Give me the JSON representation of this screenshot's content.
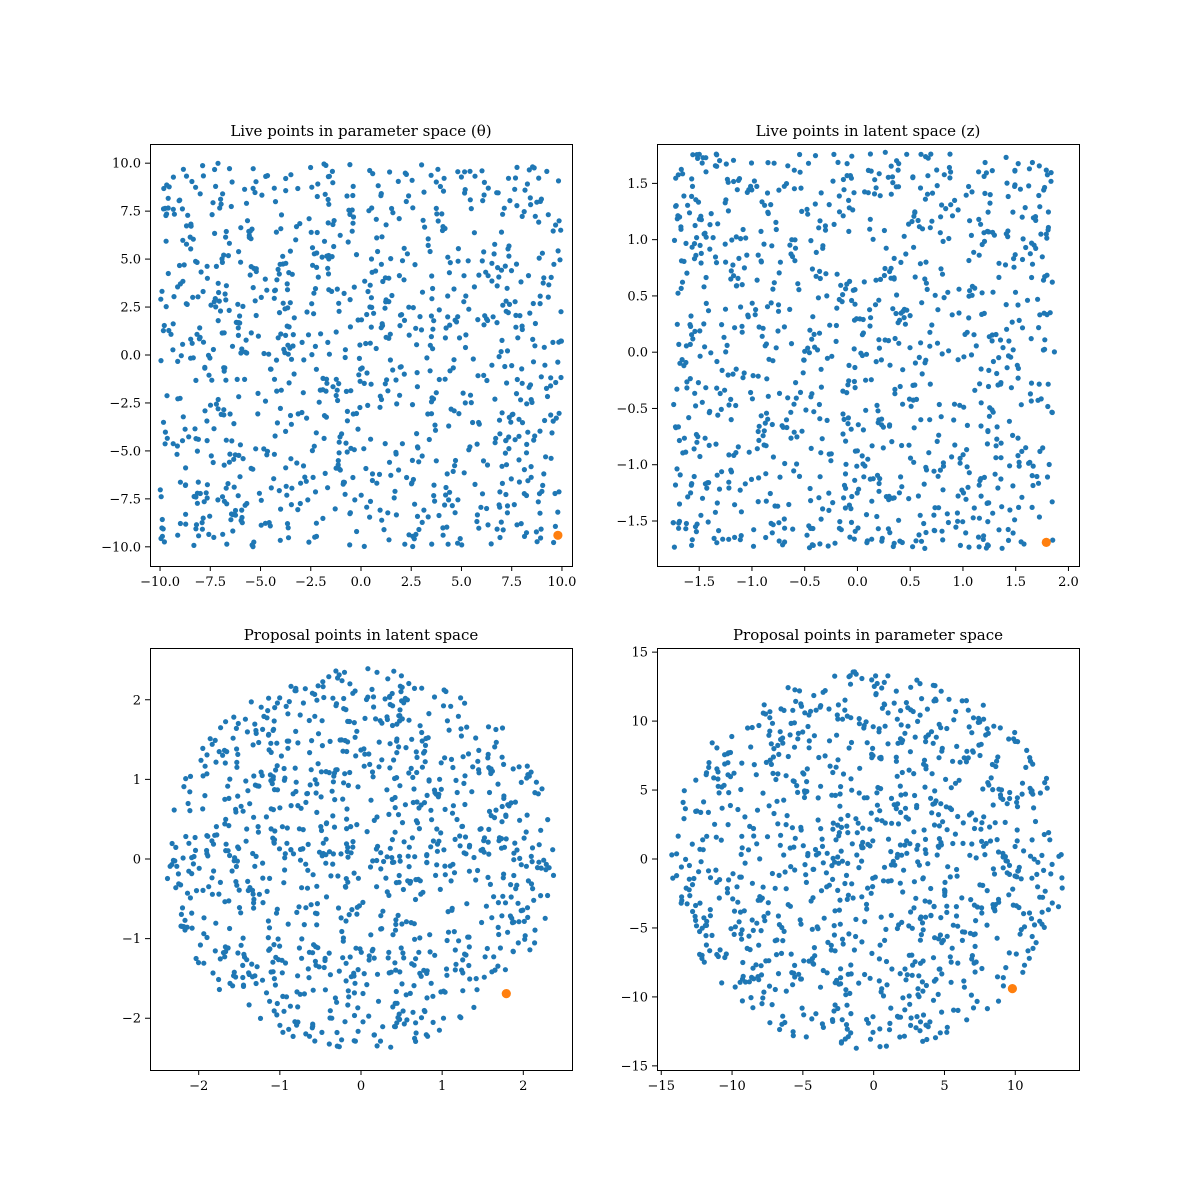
{
  "colors": {
    "points": "#1f77b4",
    "highlight": "#ff7f0e"
  },
  "chart_data": [
    {
      "type": "scatter",
      "title": "Live points in parameter space (θ)",
      "xlim": [
        -10.5,
        10.5
      ],
      "ylim": [
        -11.0,
        11.0
      ],
      "xticks": [
        -10.0,
        -7.5,
        -5.0,
        -2.5,
        0.0,
        2.5,
        5.0,
        7.5,
        10.0
      ],
      "yticks": [
        -10.0,
        -7.5,
        -5.0,
        -2.5,
        0.0,
        2.5,
        5.0,
        7.5,
        10.0
      ],
      "tick_format": 1,
      "region": "square",
      "xrange": [
        -10,
        10
      ],
      "yrange": [
        -10,
        10
      ],
      "n_points": 1000,
      "seed": 11,
      "highlight": [
        9.8,
        -9.4
      ]
    },
    {
      "type": "scatter",
      "title": "Live points in latent space (z)",
      "xlim": [
        -1.9,
        2.1
      ],
      "ylim": [
        -1.9,
        1.85
      ],
      "xticks": [
        -1.5,
        -1.0,
        -0.5,
        0.0,
        0.5,
        1.0,
        1.5,
        2.0
      ],
      "yticks": [
        -1.5,
        -1.0,
        -0.5,
        0.0,
        0.5,
        1.0,
        1.5
      ],
      "tick_format": 1,
      "region": "square",
      "xrange": [
        -1.75,
        1.87
      ],
      "yrange": [
        -1.75,
        1.78
      ],
      "n_points": 1000,
      "seed": 23,
      "highlight": [
        1.79,
        -1.69
      ]
    },
    {
      "type": "scatter",
      "title": "Proposal points in latent space",
      "xlim": [
        -2.6,
        2.6
      ],
      "ylim": [
        -2.65,
        2.65
      ],
      "xticks": [
        -2,
        -1,
        0,
        1,
        2
      ],
      "yticks": [
        -2,
        -1,
        0,
        1,
        2
      ],
      "tick_format": 0,
      "region": "disc",
      "center": [
        0,
        0
      ],
      "radius": 2.4,
      "n_points": 1000,
      "seed": 37,
      "highlight": [
        1.79,
        -1.69
      ]
    },
    {
      "type": "scatter",
      "title": "Proposal points in parameter space",
      "xlim": [
        -15.3,
        14.5
      ],
      "ylim": [
        -15.3,
        15.3
      ],
      "xticks": [
        -15,
        -10,
        -5,
        0,
        5,
        10
      ],
      "yticks": [
        -15,
        -10,
        -5,
        0,
        5,
        10,
        15
      ],
      "tick_format": 0,
      "region": "disc",
      "center": [
        -0.4,
        0
      ],
      "radius": 13.9,
      "n_points": 1000,
      "seed": 53,
      "highlight": [
        9.8,
        -9.4
      ]
    }
  ]
}
